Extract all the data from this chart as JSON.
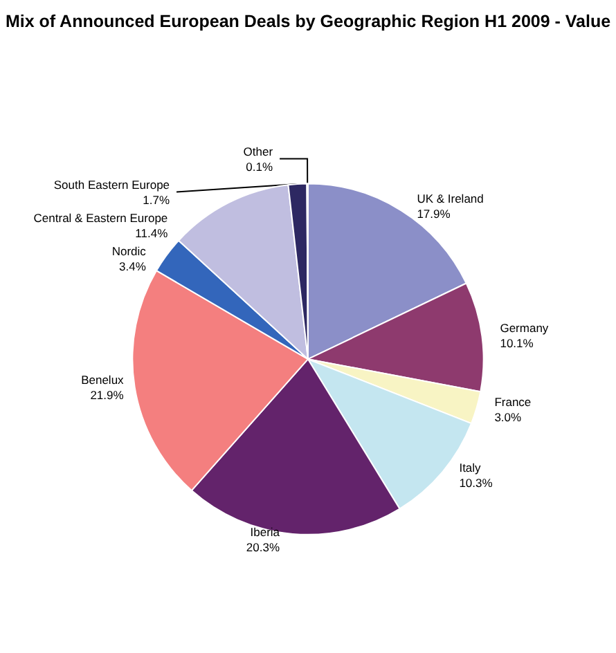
{
  "chart_data": {
    "type": "pie",
    "title": "Mix of Announced European Deals by Geographic Region H1 2009 - Value",
    "categories": [
      "UK & Ireland",
      "Germany",
      "France",
      "Italy",
      "Iberia",
      "Benelux",
      "Nordic",
      "Central & Eastern Europe",
      "South Eastern Europe",
      "Other"
    ],
    "values": [
      17.9,
      10.1,
      3.0,
      10.3,
      20.3,
      21.9,
      3.4,
      11.4,
      1.7,
      0.1
    ],
    "value_labels": [
      "17.9%",
      "10.1%",
      "3.0%",
      "10.3%",
      "20.3%",
      "21.9%",
      "3.4%",
      "11.4%",
      "1.7%",
      "0.1%"
    ],
    "colors": [
      "#8b8fc8",
      "#8e3a6e",
      "#f8f4c4",
      "#c4e6f0",
      "#63236b",
      "#f47f7f",
      "#3366bb",
      "#c0bee0",
      "#2d2862",
      "#9999cc"
    ],
    "legend": false
  }
}
